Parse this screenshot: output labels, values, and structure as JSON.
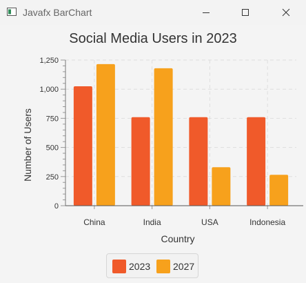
{
  "window": {
    "title": "Javafx BarChart"
  },
  "colors": {
    "series_2023": "#f05a2a",
    "series_2027": "#f7a11c",
    "grid": "#dddddd",
    "axis": "#555555"
  },
  "chart_data": {
    "type": "bar",
    "title": "Social Media Users in 2023",
    "xlabel": "Country",
    "ylabel": "Number of Users",
    "categories": [
      "China",
      "India",
      "USA",
      "Indonesia"
    ],
    "series": [
      {
        "name": "2023",
        "values": [
          1025,
          760,
          760,
          760
        ]
      },
      {
        "name": "2027",
        "values": [
          1215,
          1180,
          330,
          265
        ]
      }
    ],
    "ylim": [
      0,
      1250
    ],
    "yticks": [
      0,
      250,
      500,
      750,
      1000,
      1250
    ],
    "ytick_labels": [
      "0",
      "250",
      "500",
      "750",
      "1,000",
      "1,250"
    ],
    "grid": true,
    "legend": "bottom-center"
  }
}
